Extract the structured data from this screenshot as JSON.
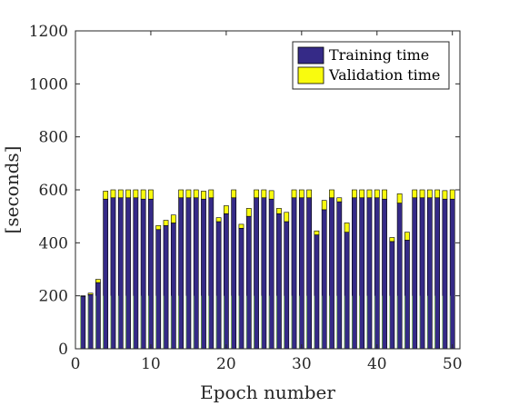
{
  "chart_data": {
    "type": "bar",
    "stacked": true,
    "xlabel": "Epoch number",
    "ylabel": "[seconds]",
    "xlim": [
      0,
      51
    ],
    "ylim": [
      0,
      1200
    ],
    "xticks": [
      0,
      10,
      20,
      30,
      40,
      50
    ],
    "yticks": [
      0,
      200,
      400,
      600,
      800,
      1000,
      1200
    ],
    "legend_position": "top-right",
    "x": [
      1,
      2,
      3,
      4,
      5,
      6,
      7,
      8,
      9,
      10,
      11,
      12,
      13,
      14,
      15,
      16,
      17,
      18,
      19,
      20,
      21,
      22,
      23,
      24,
      25,
      26,
      27,
      28,
      29,
      30,
      31,
      32,
      33,
      34,
      35,
      36,
      37,
      38,
      39,
      40,
      41,
      42,
      43,
      44,
      45,
      46,
      47,
      48,
      49,
      50
    ],
    "series": [
      {
        "name": "Training time",
        "color": "#352a87",
        "values": [
          198,
          205,
          250,
          565,
          570,
          570,
          570,
          570,
          565,
          565,
          450,
          465,
          475,
          570,
          570,
          570,
          565,
          570,
          480,
          510,
          570,
          455,
          500,
          570,
          570,
          565,
          510,
          480,
          570,
          570,
          570,
          430,
          525,
          570,
          555,
          440,
          570,
          570,
          570,
          570,
          565,
          405,
          550,
          410,
          570,
          570,
          570,
          570,
          565,
          565
        ]
      },
      {
        "name": "Validation time",
        "color": "#f9fb0e",
        "values": [
          2,
          5,
          12,
          30,
          30,
          30,
          30,
          30,
          35,
          35,
          15,
          20,
          30,
          30,
          30,
          30,
          30,
          30,
          15,
          30,
          30,
          15,
          30,
          30,
          30,
          32,
          20,
          35,
          30,
          30,
          30,
          15,
          35,
          30,
          15,
          35,
          30,
          30,
          30,
          30,
          35,
          15,
          35,
          30,
          30,
          30,
          30,
          30,
          32,
          35
        ]
      }
    ]
  }
}
